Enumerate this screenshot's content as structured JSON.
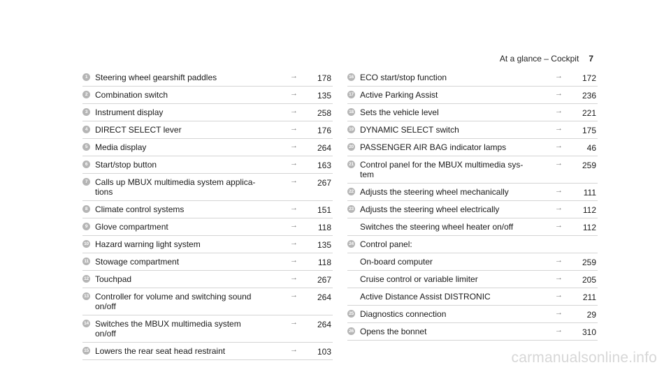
{
  "header": {
    "title": "At a glance – Cockpit",
    "page": "7"
  },
  "left": [
    {
      "n": "1",
      "label": "Steering wheel gearshift paddles",
      "page": "178"
    },
    {
      "n": "2",
      "label": "Combination switch",
      "page": "135"
    },
    {
      "n": "3",
      "label": "Instrument display",
      "page": "258"
    },
    {
      "n": "4",
      "label": "DIRECT SELECT lever",
      "page": "176"
    },
    {
      "n": "5",
      "label": "Media display",
      "page": "264"
    },
    {
      "n": "6",
      "label": "Start/stop button",
      "page": "163"
    },
    {
      "n": "7",
      "label": "Calls up MBUX multimedia system applica-\ntions",
      "page": "267"
    },
    {
      "n": "8",
      "label": "Climate control systems",
      "page": "151"
    },
    {
      "n": "9",
      "label": "Glove compartment",
      "page": "118"
    },
    {
      "n": "10",
      "label": "Hazard warning light system",
      "page": "135"
    },
    {
      "n": "11",
      "label": "Stowage compartment",
      "page": "118"
    },
    {
      "n": "12",
      "label": "Touchpad",
      "page": "267"
    },
    {
      "n": "13",
      "label": "Controller for volume and switching sound\non/off",
      "page": "264"
    },
    {
      "n": "14",
      "label": "Switches the MBUX multimedia system\non/off",
      "page": "264"
    },
    {
      "n": "15",
      "label": "Lowers the rear seat head restraint",
      "page": "103"
    }
  ],
  "right": [
    {
      "n": "16",
      "label": "ECO start/stop function",
      "page": "172"
    },
    {
      "n": "17",
      "label": "Active Parking Assist",
      "page": "236"
    },
    {
      "n": "18",
      "label": "Sets the vehicle level",
      "page": "221"
    },
    {
      "n": "19",
      "label": "DYNAMIC SELECT switch",
      "page": "175"
    },
    {
      "n": "20",
      "label": "PASSENGER AIR BAG indicator lamps",
      "page": "46"
    },
    {
      "n": "21",
      "label": "Control panel for the MBUX multimedia sys-\ntem",
      "page": "259"
    },
    {
      "n": "22",
      "label": "Adjusts the steering wheel mechanically",
      "page": "111"
    },
    {
      "n": "23",
      "label": "Adjusts the steering wheel electrically",
      "page": "112"
    },
    {
      "n": "",
      "label": "Switches the steering wheel heater on/off",
      "page": "112"
    },
    {
      "n": "24",
      "label": "Control panel:",
      "page": ""
    },
    {
      "n": "",
      "label": "On-board computer",
      "page": "259"
    },
    {
      "n": "",
      "label": "Cruise control or variable limiter",
      "page": "205"
    },
    {
      "n": "",
      "label": "Active Distance Assist DISTRONIC",
      "page": "211"
    },
    {
      "n": "25",
      "label": "Diagnostics connection",
      "page": "29"
    },
    {
      "n": "26",
      "label": "Opens the bonnet",
      "page": "310"
    }
  ],
  "arrow_glyph": "→",
  "watermark": "carmanualsonline.info"
}
